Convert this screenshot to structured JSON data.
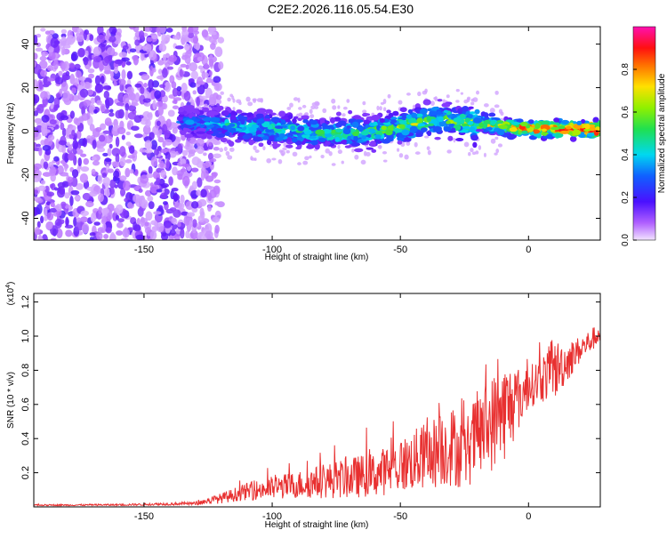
{
  "figure": {
    "title": "C2E2.2026.116.05.54.E30"
  },
  "colors": {
    "signal": "#e83030",
    "spectrum_purple": "#7a1cf0",
    "spectrum_light": "#d9b8f7",
    "spectrum_blue": "#2a3cff",
    "spectrum_cyan": "#00e5e5",
    "spectrum_green": "#55e060",
    "spectrum_red": "#ff2020"
  },
  "chart_data": [
    {
      "type": "heatmap",
      "title": "",
      "xlabel": "Height of straight line (km)",
      "ylabel": "Frequency (Hz)",
      "xlim": [
        -193,
        28
      ],
      "ylim": [
        -50,
        48
      ],
      "xticks": [
        -150,
        -100,
        -50,
        0
      ],
      "yticks": [
        -40,
        -20,
        0,
        20,
        40
      ],
      "colorbar": {
        "label": "Normalized spectral amplitude",
        "range": [
          0.0,
          1.0
        ],
        "ticks": [
          "0.0",
          "0.2",
          "0.4",
          "0.6",
          "0.8"
        ],
        "tick_values": [
          0.0,
          0.2,
          0.4,
          0.6,
          0.8
        ]
      },
      "ridge": {
        "x": [
          -135,
          -120,
          -100,
          -80,
          -60,
          -45,
          -35,
          -25,
          -15,
          0,
          10,
          20,
          28
        ],
        "freq": [
          4,
          3,
          1,
          -1,
          0,
          3,
          6,
          4,
          3,
          1,
          1,
          1,
          1
        ],
        "strength": [
          0.25,
          0.35,
          0.4,
          0.4,
          0.45,
          0.5,
          0.45,
          0.55,
          0.6,
          0.75,
          0.8,
          0.85,
          1.0
        ]
      }
    },
    {
      "type": "line",
      "title": "",
      "xlabel": "Height of straight line (km)",
      "ylabel": "SNR (10 * v/v)",
      "scale_note": "(x10",
      "scale_exp": "4",
      "scale_close": ")",
      "xlim": [
        -193,
        28
      ],
      "ylim": [
        0,
        1.25
      ],
      "xticks": [
        -150,
        -100,
        -50,
        0
      ],
      "yticks": [
        0.2,
        0.4,
        0.6,
        0.8,
        1.0,
        1.2
      ],
      "ytick_labels": [
        "0.2",
        "0.4",
        "0.6",
        "0.8",
        "1.0",
        "1.2"
      ],
      "series": [
        {
          "envelope_x": [
            -193,
            -160,
            -130,
            -120,
            -110,
            -100,
            -90,
            -80,
            -70,
            -60,
            -50,
            -40,
            -30,
            -25,
            -20,
            -15,
            -10,
            -5,
            0,
            5,
            10,
            15,
            20,
            28
          ],
          "envelope_mean": [
            0.01,
            0.012,
            0.02,
            0.05,
            0.09,
            0.11,
            0.13,
            0.15,
            0.17,
            0.19,
            0.24,
            0.3,
            0.36,
            0.3,
            0.42,
            0.48,
            0.55,
            0.62,
            0.7,
            0.75,
            0.8,
            0.85,
            0.92,
            1.02
          ],
          "envelope_amp": [
            0.004,
            0.005,
            0.01,
            0.03,
            0.05,
            0.07,
            0.08,
            0.1,
            0.12,
            0.13,
            0.16,
            0.2,
            0.24,
            0.2,
            0.26,
            0.28,
            0.3,
            0.22,
            0.12,
            0.14,
            0.18,
            0.12,
            0.08,
            0.06
          ]
        }
      ]
    }
  ]
}
